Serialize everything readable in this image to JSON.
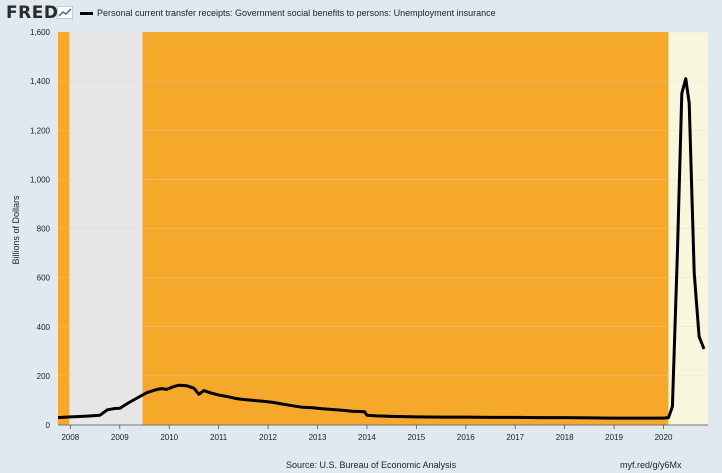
{
  "header": {
    "logo_text": "FRED",
    "logo_icon": "trend-line-icon",
    "legend_label": "Personal current transfer receipts: Government social benefits to persons: Unemployment insurance"
  },
  "footer": {
    "source": "Source: U.S. Bureau of Economic Analysis",
    "link": "myf.red/g/y6Mx"
  },
  "colors": {
    "background": "#e1e9f0",
    "plot_background": "#ffffff",
    "shade_orange": "#f5a82a",
    "shade_gray": "#e6e6e6",
    "shade_cream": "#f8f6dd",
    "line": "#000000",
    "grid": "#d5d5d5"
  },
  "chart_data": {
    "type": "line",
    "title": "",
    "xlabel": "",
    "ylabel": "Billions of Dollars",
    "xlim": [
      2007.75,
      2020.9
    ],
    "ylim": [
      0,
      1600
    ],
    "x_ticks": [
      2008,
      2009,
      2010,
      2011,
      2012,
      2013,
      2014,
      2015,
      2016,
      2017,
      2018,
      2019,
      2020
    ],
    "x_tick_labels": [
      "2008",
      "2009",
      "2010",
      "2011",
      "2012",
      "2013",
      "2014",
      "2015",
      "2016",
      "2017",
      "2018",
      "2019",
      "2020"
    ],
    "y_ticks": [
      0,
      200,
      400,
      600,
      800,
      1000,
      1200,
      1400,
      1600
    ],
    "y_tick_labels": [
      "0",
      "200",
      "400",
      "600",
      "800",
      "1,000",
      "1,200",
      "1,400",
      "1,600"
    ],
    "grid": true,
    "legend_position": "top",
    "shaded_regions": [
      {
        "from": 2007.75,
        "to": 2007.98,
        "color": "#f5a82a"
      },
      {
        "from": 2007.98,
        "to": 2009.46,
        "color": "#e6e6e6"
      },
      {
        "from": 2009.46,
        "to": 2020.1,
        "color": "#f5a82a"
      },
      {
        "from": 2020.1,
        "to": 2020.9,
        "color": "#f8f6dd"
      }
    ],
    "series": [
      {
        "name": "Personal current transfer receipts: Government social benefits to persons: Unemployment insurance",
        "x": [
          2007.75,
          2008.0,
          2008.3,
          2008.45,
          2008.6,
          2008.75,
          2008.9,
          2009.0,
          2009.15,
          2009.35,
          2009.55,
          2009.75,
          2009.85,
          2009.95,
          2010.1,
          2010.2,
          2010.35,
          2010.5,
          2010.6,
          2010.7,
          2010.85,
          2011.0,
          2011.2,
          2011.35,
          2011.5,
          2011.7,
          2011.9,
          2012.1,
          2012.3,
          2012.5,
          2012.7,
          2012.9,
          2013.1,
          2013.3,
          2013.5,
          2013.7,
          2013.95,
          2014.0,
          2014.2,
          2014.5,
          2015.0,
          2015.5,
          2016.0,
          2016.5,
          2017.0,
          2017.5,
          2018.0,
          2018.5,
          2019.0,
          2019.5,
          2020.0,
          2020.1,
          2020.18,
          2020.28,
          2020.37,
          2020.45,
          2020.52,
          2020.62,
          2020.72,
          2020.82
        ],
        "values": [
          30,
          33,
          36,
          38,
          40,
          62,
          67,
          68,
          87,
          110,
          132,
          145,
          148,
          145,
          157,
          162,
          160,
          150,
          125,
          140,
          130,
          122,
          115,
          108,
          104,
          100,
          97,
          92,
          85,
          78,
          72,
          70,
          66,
          63,
          60,
          56,
          54,
          40,
          37,
          35,
          33,
          32,
          32,
          31,
          31,
          30,
          30,
          29,
          28,
          28,
          28,
          30,
          75,
          700,
          1350,
          1410,
          1310,
          620,
          360,
          310
        ]
      }
    ]
  }
}
